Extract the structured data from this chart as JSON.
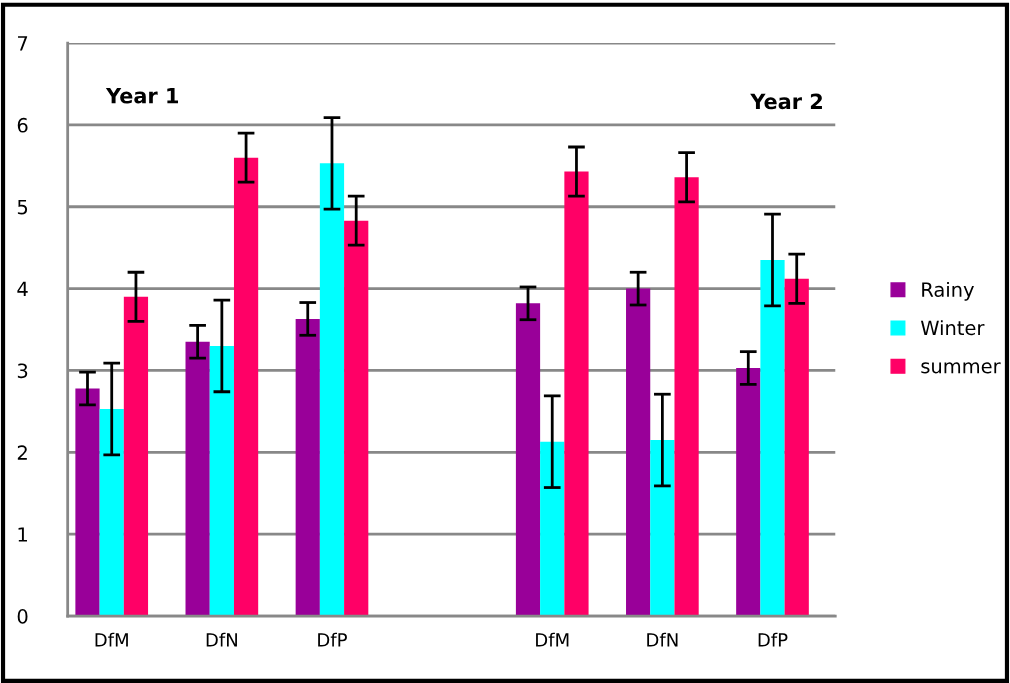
{
  "chart_data": {
    "type": "bar",
    "categories": [
      "DfM",
      "DfN",
      "DfP",
      null,
      "DfM",
      "DfN",
      "DfP"
    ],
    "series": [
      {
        "name": "Rainy",
        "color": "#990099",
        "values": [
          2.78,
          3.35,
          3.63,
          null,
          3.82,
          4.0,
          3.03
        ],
        "errors": [
          0.2,
          0.2,
          0.2,
          null,
          0.2,
          0.2,
          0.2
        ]
      },
      {
        "name": "Winter",
        "color": "#00ffff",
        "values": [
          2.53,
          3.3,
          5.53,
          null,
          2.13,
          2.15,
          4.35
        ],
        "errors": [
          0.56,
          0.56,
          0.56,
          null,
          0.56,
          0.56,
          0.56
        ]
      },
      {
        "name": "summer",
        "color": "#ff0066",
        "values": [
          3.9,
          5.6,
          4.83,
          null,
          5.43,
          5.36,
          4.12
        ],
        "errors": [
          0.3,
          0.3,
          0.3,
          null,
          0.3,
          0.3,
          0.3
        ]
      }
    ],
    "annotations": [
      "Year 1",
      "Year 2"
    ],
    "ylim": [
      0,
      7
    ],
    "yticks": [
      0,
      1,
      2,
      3,
      4,
      5,
      6,
      7
    ],
    "grid": "y",
    "legend": "right"
  }
}
